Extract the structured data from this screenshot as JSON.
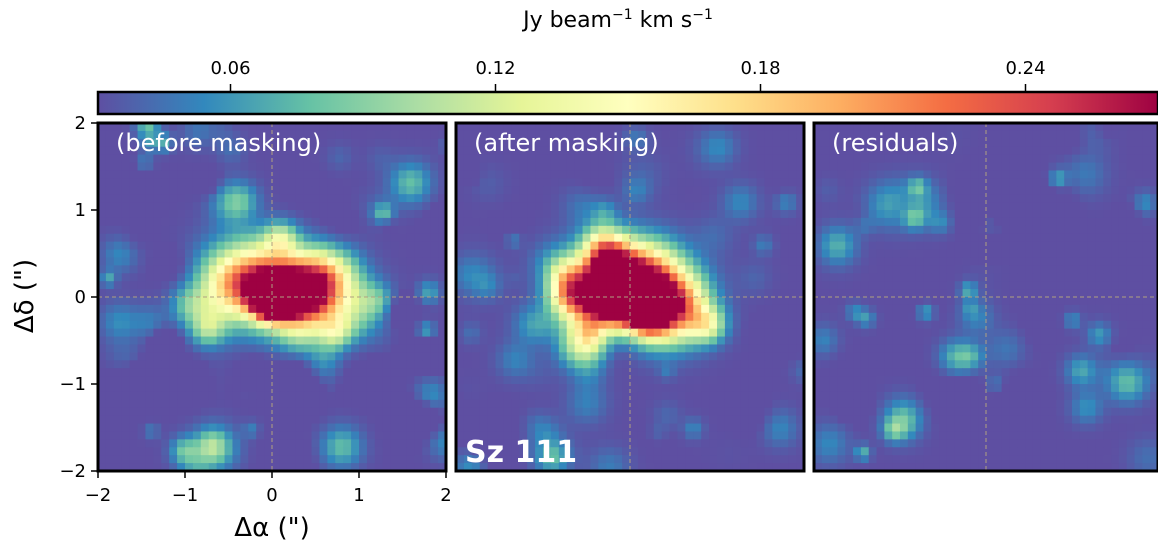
{
  "chart_data": {
    "type": "heatmap",
    "colorbar": {
      "label_prefix": "Jy beam",
      "label_exp1": "−1",
      "label_mid": " km s",
      "label_exp2": "−1",
      "range": [
        0.03,
        0.27
      ],
      "ticks": [
        0.06,
        0.12,
        0.18,
        0.24
      ],
      "tick_labels": [
        "0.06",
        "0.12",
        "0.18",
        "0.24"
      ],
      "colormap": [
        "#5e4fa2",
        "#3288bd",
        "#66c2a5",
        "#abdda4",
        "#e6f598",
        "#ffffbf",
        "#fee08b",
        "#fdae61",
        "#f46d43",
        "#d53e4f",
        "#9e0142"
      ]
    },
    "xlim": [
      -2,
      2
    ],
    "ylim": [
      -2,
      2
    ],
    "x_ticks": [
      -2,
      -1,
      0,
      1,
      2
    ],
    "x_tick_labels": [
      "−2",
      "−1",
      "0",
      "1",
      "2"
    ],
    "y_ticks": [
      2,
      1,
      0,
      -1,
      -2
    ],
    "y_tick_labels": [
      "2",
      "1",
      "0",
      "−1",
      "−2"
    ],
    "xlabel": "Δα (\")",
    "ylabel": "Δδ (\")",
    "panels": [
      {
        "title": "(before masking)",
        "peak": 0.265,
        "extended": 0.09,
        "noise": 0.05
      },
      {
        "title": "(after masking)",
        "peak": 0.265,
        "extended": 0.1,
        "noise": 0.025
      },
      {
        "title": "(residuals)",
        "peak": 0.0,
        "extended": 0.0,
        "noise": 0.045
      }
    ],
    "source_label": "Sz 111"
  }
}
